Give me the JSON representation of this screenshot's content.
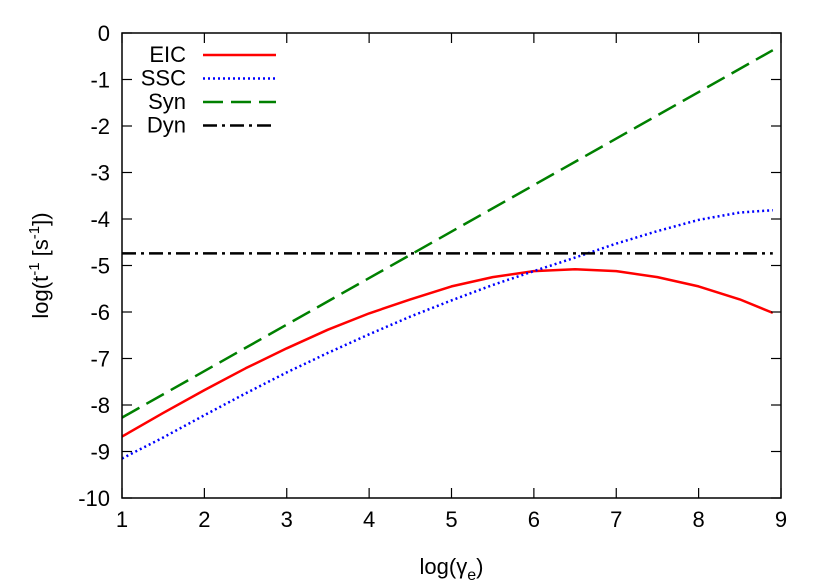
{
  "chart_data": {
    "type": "line",
    "xlabel": {
      "base": "log(γ",
      "sub": "e",
      "tail": ")"
    },
    "ylabel": {
      "p1": "log(t",
      "sup1": "-1",
      "p2": " [s",
      "sup2": "-1",
      "p3": "])"
    },
    "xlim": [
      1,
      9
    ],
    "ylim": [
      -10,
      0
    ],
    "xticks": [
      1,
      2,
      3,
      4,
      5,
      6,
      7,
      8,
      9
    ],
    "yticks": [
      0,
      -1,
      -2,
      -3,
      -4,
      -5,
      -6,
      -7,
      -8,
      -9,
      -10
    ],
    "grid": false,
    "legend_position": "top-left",
    "series": [
      {
        "name": "EIC",
        "color": "#ff0000",
        "dash": "solid",
        "x": [
          1.0,
          1.5,
          2.0,
          2.5,
          3.0,
          3.5,
          4.0,
          4.5,
          5.0,
          5.5,
          6.0,
          6.5,
          7.0,
          7.5,
          8.0,
          8.5,
          8.9
        ],
        "y": [
          -8.68,
          -8.17,
          -7.68,
          -7.21,
          -6.78,
          -6.38,
          -6.03,
          -5.73,
          -5.45,
          -5.25,
          -5.12,
          -5.08,
          -5.12,
          -5.25,
          -5.45,
          -5.73,
          -6.02
        ]
      },
      {
        "name": "SSC",
        "color": "#0000ff",
        "dash": "dotted",
        "x": [
          1.0,
          1.5,
          2.0,
          2.5,
          3.0,
          3.5,
          4.0,
          4.5,
          5.0,
          5.5,
          6.0,
          6.5,
          7.0,
          7.5,
          8.0,
          8.5,
          8.9
        ],
        "y": [
          -9.15,
          -8.7,
          -8.22,
          -7.75,
          -7.3,
          -6.88,
          -6.48,
          -6.1,
          -5.75,
          -5.42,
          -5.12,
          -4.83,
          -4.53,
          -4.26,
          -4.02,
          -3.86,
          -3.81
        ]
      },
      {
        "name": "Syn",
        "color": "#008000",
        "dash": "dashed",
        "x": [
          1.0,
          8.9
        ],
        "y": [
          -8.27,
          -0.37
        ]
      },
      {
        "name": "Dyn",
        "color": "#000000",
        "dash": "dash-dot",
        "x": [
          1.0,
          8.9
        ],
        "y": [
          -4.74,
          -4.74
        ]
      }
    ]
  }
}
